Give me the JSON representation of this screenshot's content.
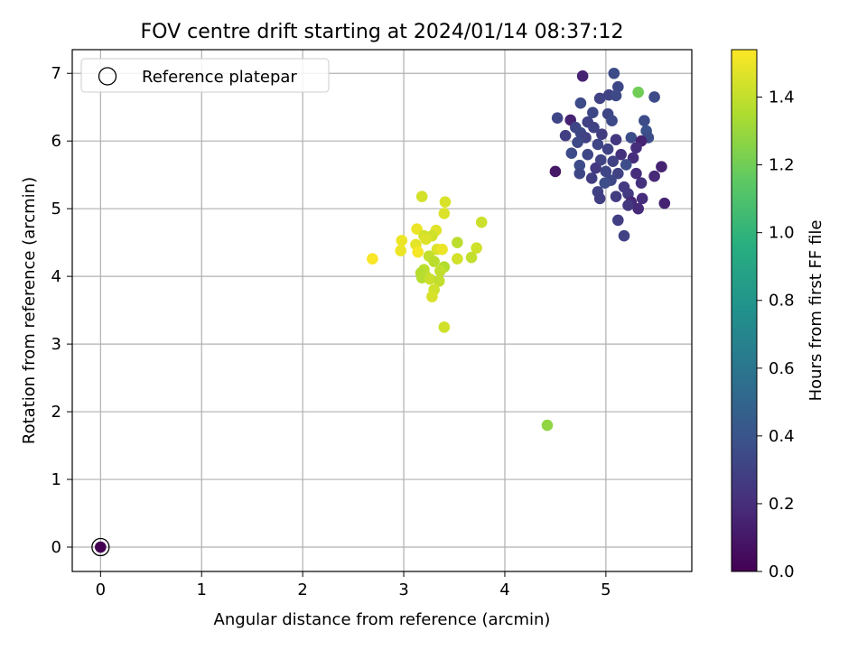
{
  "chart_data": {
    "type": "scatter",
    "title": "FOV centre drift starting at 2024/01/14 08:37:12",
    "xlabel": "Angular distance from reference (arcmin)",
    "ylabel": "Rotation from reference (arcmin)",
    "xlim": [
      -0.28,
      5.85
    ],
    "ylim": [
      -0.36,
      7.35
    ],
    "xticks": [
      0,
      1,
      2,
      3,
      4,
      5
    ],
    "yticks": [
      0,
      1,
      2,
      3,
      4,
      5,
      6,
      7
    ],
    "grid": true,
    "legend": {
      "position": "top-left",
      "entries": [
        "Reference platepar"
      ]
    },
    "colorbar": {
      "label": "Hours from first FF file",
      "colormap": "viridis",
      "range": [
        0.0,
        1.54
      ],
      "ticks": [
        "0.0",
        "0.2",
        "0.4",
        "0.6",
        "0.8",
        "1.0",
        "1.2",
        "1.4"
      ]
    },
    "reference": {
      "x": 0,
      "y": 0
    },
    "points": [
      {
        "x": 0.0,
        "y": 0.0,
        "h": 0.0
      },
      {
        "x": 4.77,
        "y": 6.96,
        "h": 0.15
      },
      {
        "x": 5.08,
        "y": 7.0,
        "h": 0.35
      },
      {
        "x": 5.12,
        "y": 6.8,
        "h": 0.33
      },
      {
        "x": 5.32,
        "y": 6.72,
        "h": 1.2
      },
      {
        "x": 5.48,
        "y": 6.65,
        "h": 0.35
      },
      {
        "x": 5.03,
        "y": 6.68,
        "h": 0.3
      },
      {
        "x": 5.1,
        "y": 6.67,
        "h": 0.34
      },
      {
        "x": 4.94,
        "y": 6.63,
        "h": 0.3
      },
      {
        "x": 4.75,
        "y": 6.56,
        "h": 0.35
      },
      {
        "x": 4.87,
        "y": 6.42,
        "h": 0.33
      },
      {
        "x": 5.02,
        "y": 6.4,
        "h": 0.32
      },
      {
        "x": 4.52,
        "y": 6.34,
        "h": 0.32
      },
      {
        "x": 4.65,
        "y": 6.31,
        "h": 0.15
      },
      {
        "x": 5.38,
        "y": 6.3,
        "h": 0.35
      },
      {
        "x": 5.06,
        "y": 6.3,
        "h": 0.34
      },
      {
        "x": 4.82,
        "y": 6.28,
        "h": 0.3
      },
      {
        "x": 4.7,
        "y": 6.2,
        "h": 0.32
      },
      {
        "x": 4.88,
        "y": 6.2,
        "h": 0.3
      },
      {
        "x": 5.4,
        "y": 6.15,
        "h": 0.38
      },
      {
        "x": 4.75,
        "y": 6.12,
        "h": 0.33
      },
      {
        "x": 4.96,
        "y": 6.1,
        "h": 0.27
      },
      {
        "x": 5.25,
        "y": 6.05,
        "h": 0.36
      },
      {
        "x": 5.42,
        "y": 6.05,
        "h": 0.36
      },
      {
        "x": 4.6,
        "y": 6.08,
        "h": 0.28
      },
      {
        "x": 4.8,
        "y": 6.05,
        "h": 0.3
      },
      {
        "x": 5.1,
        "y": 6.02,
        "h": 0.25
      },
      {
        "x": 5.35,
        "y": 6.0,
        "h": 0.15
      },
      {
        "x": 4.72,
        "y": 5.98,
        "h": 0.34
      },
      {
        "x": 4.92,
        "y": 5.95,
        "h": 0.32
      },
      {
        "x": 5.3,
        "y": 5.9,
        "h": 0.2
      },
      {
        "x": 5.02,
        "y": 5.88,
        "h": 0.31
      },
      {
        "x": 4.66,
        "y": 5.82,
        "h": 0.35
      },
      {
        "x": 4.82,
        "y": 5.8,
        "h": 0.33
      },
      {
        "x": 5.15,
        "y": 5.8,
        "h": 0.22
      },
      {
        "x": 5.27,
        "y": 5.75,
        "h": 0.2
      },
      {
        "x": 4.95,
        "y": 5.72,
        "h": 0.31
      },
      {
        "x": 5.07,
        "y": 5.7,
        "h": 0.3
      },
      {
        "x": 4.74,
        "y": 5.64,
        "h": 0.35
      },
      {
        "x": 5.2,
        "y": 5.65,
        "h": 0.36
      },
      {
        "x": 5.55,
        "y": 5.62,
        "h": 0.15
      },
      {
        "x": 4.9,
        "y": 5.6,
        "h": 0.26
      },
      {
        "x": 5.0,
        "y": 5.55,
        "h": 0.32
      },
      {
        "x": 4.5,
        "y": 5.55,
        "h": 0.1
      },
      {
        "x": 5.12,
        "y": 5.52,
        "h": 0.3
      },
      {
        "x": 4.74,
        "y": 5.52,
        "h": 0.33
      },
      {
        "x": 5.3,
        "y": 5.52,
        "h": 0.2
      },
      {
        "x": 5.48,
        "y": 5.48,
        "h": 0.18
      },
      {
        "x": 4.86,
        "y": 5.45,
        "h": 0.28
      },
      {
        "x": 5.05,
        "y": 5.42,
        "h": 0.33
      },
      {
        "x": 4.99,
        "y": 5.38,
        "h": 0.36
      },
      {
        "x": 5.35,
        "y": 5.38,
        "h": 0.22
      },
      {
        "x": 5.18,
        "y": 5.32,
        "h": 0.26
      },
      {
        "x": 4.92,
        "y": 5.25,
        "h": 0.3
      },
      {
        "x": 5.22,
        "y": 5.22,
        "h": 0.26
      },
      {
        "x": 5.1,
        "y": 5.18,
        "h": 0.27
      },
      {
        "x": 5.36,
        "y": 5.15,
        "h": 0.2
      },
      {
        "x": 4.94,
        "y": 5.15,
        "h": 0.28
      },
      {
        "x": 5.25,
        "y": 5.1,
        "h": 0.18
      },
      {
        "x": 5.32,
        "y": 5.0,
        "h": 0.18
      },
      {
        "x": 5.58,
        "y": 5.08,
        "h": 0.15
      },
      {
        "x": 5.22,
        "y": 5.05,
        "h": 0.25
      },
      {
        "x": 5.12,
        "y": 4.83,
        "h": 0.28
      },
      {
        "x": 5.18,
        "y": 4.6,
        "h": 0.3
      },
      {
        "x": 3.18,
        "y": 5.18,
        "h": 1.44
      },
      {
        "x": 3.41,
        "y": 5.1,
        "h": 1.45
      },
      {
        "x": 3.4,
        "y": 4.93,
        "h": 1.46
      },
      {
        "x": 3.77,
        "y": 4.8,
        "h": 1.42
      },
      {
        "x": 3.13,
        "y": 4.7,
        "h": 1.5
      },
      {
        "x": 3.32,
        "y": 4.68,
        "h": 1.47
      },
      {
        "x": 3.2,
        "y": 4.6,
        "h": 1.44
      },
      {
        "x": 3.28,
        "y": 4.6,
        "h": 1.43
      },
      {
        "x": 2.98,
        "y": 4.53,
        "h": 1.5
      },
      {
        "x": 3.22,
        "y": 4.55,
        "h": 1.46
      },
      {
        "x": 3.53,
        "y": 4.5,
        "h": 1.38
      },
      {
        "x": 3.12,
        "y": 4.47,
        "h": 1.48
      },
      {
        "x": 3.72,
        "y": 4.42,
        "h": 1.43
      },
      {
        "x": 2.97,
        "y": 4.38,
        "h": 1.5
      },
      {
        "x": 3.33,
        "y": 4.4,
        "h": 1.46
      },
      {
        "x": 3.38,
        "y": 4.4,
        "h": 1.5
      },
      {
        "x": 3.14,
        "y": 4.36,
        "h": 1.52
      },
      {
        "x": 3.25,
        "y": 4.3,
        "h": 1.4
      },
      {
        "x": 2.69,
        "y": 4.26,
        "h": 1.53
      },
      {
        "x": 3.53,
        "y": 4.26,
        "h": 1.44
      },
      {
        "x": 3.67,
        "y": 4.28,
        "h": 1.4
      },
      {
        "x": 3.3,
        "y": 4.22,
        "h": 1.38
      },
      {
        "x": 3.4,
        "y": 4.14,
        "h": 1.36
      },
      {
        "x": 3.36,
        "y": 4.08,
        "h": 1.4
      },
      {
        "x": 3.2,
        "y": 4.1,
        "h": 1.38
      },
      {
        "x": 3.17,
        "y": 4.05,
        "h": 1.36
      },
      {
        "x": 3.22,
        "y": 4.0,
        "h": 1.39
      },
      {
        "x": 3.18,
        "y": 3.98,
        "h": 1.37
      },
      {
        "x": 3.26,
        "y": 3.96,
        "h": 1.42
      },
      {
        "x": 3.35,
        "y": 3.93,
        "h": 1.4
      },
      {
        "x": 3.3,
        "y": 3.8,
        "h": 1.43
      },
      {
        "x": 3.28,
        "y": 3.7,
        "h": 1.45
      },
      {
        "x": 3.4,
        "y": 3.25,
        "h": 1.43
      },
      {
        "x": 4.42,
        "y": 1.8,
        "h": 1.28
      }
    ]
  }
}
